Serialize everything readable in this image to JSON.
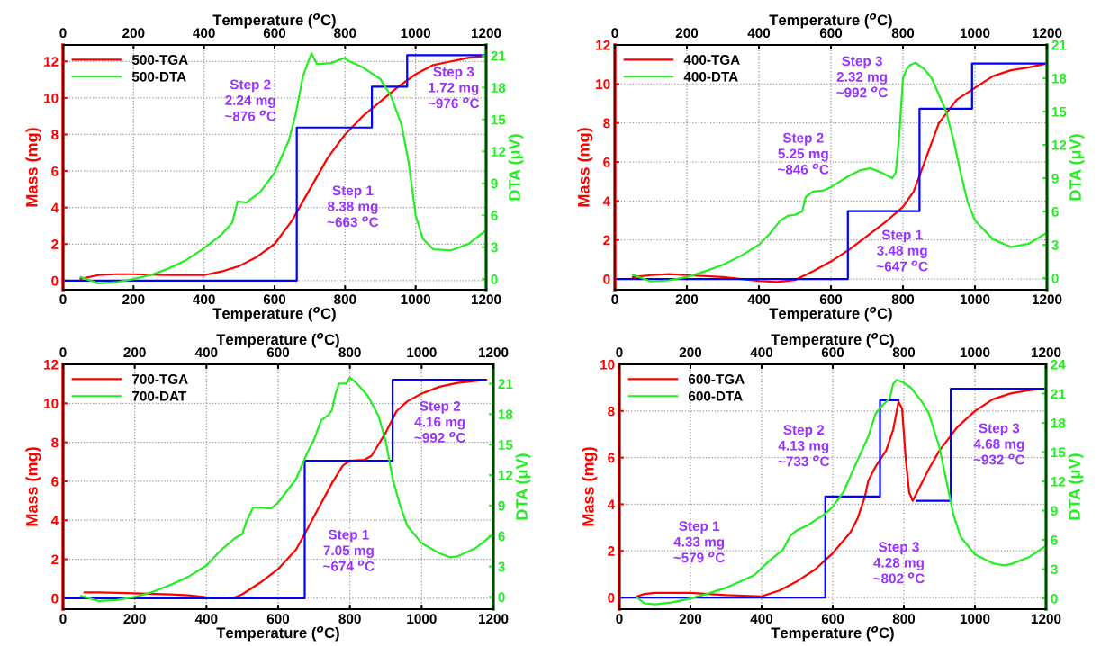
{
  "chart_data": [
    {
      "type": "line",
      "xlabel": "Temperature ($^{o}$C)",
      "x2label": "Temperature ($^{o}$C)",
      "ylabel": "Mass (mg)",
      "y2label": "DTA (μV)",
      "xlim": [
        0,
        1200
      ],
      "xticks": [
        0,
        200,
        400,
        600,
        800,
        1000,
        1200
      ],
      "x2lim": [
        0,
        1200
      ],
      "x2ticks": [
        0,
        200,
        400,
        600,
        800,
        1000,
        1200
      ],
      "ylim": [
        -0.5,
        12.9
      ],
      "yticks": [
        0,
        2,
        4,
        6,
        8,
        10,
        12
      ],
      "y2lim": [
        -1,
        22
      ],
      "y2ticks": [
        0,
        3,
        6,
        9,
        12,
        15,
        18,
        21
      ],
      "grid": true,
      "legend": "top left",
      "series": [
        {
          "name": "500-TGA",
          "color": "#ff0000",
          "x": [
            50,
            100,
            150,
            200,
            300,
            400,
            450,
            500,
            550,
            600,
            650,
            700,
            750,
            800,
            850,
            900,
            950,
            1000,
            1050,
            1100,
            1150,
            1200
          ],
          "values": [
            0.1,
            0.3,
            0.35,
            0.35,
            0.3,
            0.3,
            0.5,
            0.8,
            1.3,
            2.0,
            3.3,
            5.0,
            6.7,
            8.0,
            9.0,
            9.8,
            10.6,
            11.3,
            11.8,
            12.0,
            12.2,
            12.3
          ]
        },
        {
          "name": "500-DTA",
          "color": "#22ee22",
          "axis": "y2",
          "x": [
            50,
            100,
            150,
            200,
            250,
            300,
            350,
            400,
            450,
            480,
            495,
            520,
            560,
            600,
            640,
            660,
            680,
            700,
            705,
            720,
            760,
            800,
            810,
            850,
            900,
            930,
            960,
            980,
            1000,
            1020,
            1050,
            1100,
            1150,
            1200
          ],
          "values": [
            0.2,
            -0.4,
            -0.3,
            0,
            0.4,
            1.0,
            1.8,
            2.9,
            4.2,
            5.3,
            7.3,
            7.2,
            8.2,
            10,
            13,
            15.5,
            19,
            20.8,
            21.2,
            20.2,
            20.3,
            20.8,
            20.5,
            19.9,
            18.8,
            17.2,
            14.5,
            11,
            6,
            3.8,
            2.8,
            2.7,
            3.3,
            4.6
          ]
        },
        {
          "color": "#0000ff",
          "x": [
            0,
            663,
            663,
            876,
            876,
            976,
            976,
            1200
          ],
          "values": [
            0,
            0,
            8.38,
            8.38,
            10.62,
            10.62,
            12.34,
            12.34
          ]
        }
      ],
      "annotations": [
        "Step 2\n2.24 mg\n~876 $^{o}$C",
        "Step 3\n1.72 mg\n~976 $^{o}$C",
        "Step 1\n8.38 mg\n~663 $^{o}$C"
      ]
    },
    {
      "type": "line",
      "xlabel": "Temperature ($^{o}$C)",
      "x2label": "Temperature ($^{o}$C)",
      "ylabel": "Mass (mg)",
      "y2label": "DTA (μV)",
      "xlim": [
        0,
        1200
      ],
      "xticks": [
        0,
        200,
        400,
        600,
        800,
        1000,
        1200
      ],
      "x2lim": [
        0,
        1200
      ],
      "x2ticks": [
        0,
        200,
        400,
        600,
        800,
        1000,
        1200
      ],
      "ylim": [
        -0.55,
        12
      ],
      "yticks": [
        0,
        2,
        4,
        6,
        8,
        10,
        12
      ],
      "y2lim": [
        -1.05,
        21
      ],
      "y2ticks": [
        0,
        3,
        6,
        9,
        12,
        15,
        18,
        21
      ],
      "grid": true,
      "legend": "top left",
      "series": [
        {
          "name": "400-TGA",
          "color": "#ff0000",
          "x": [
            50,
            100,
            150,
            200,
            300,
            400,
            450,
            500,
            550,
            600,
            650,
            700,
            750,
            800,
            830,
            850,
            880,
            900,
            950,
            1000,
            1050,
            1100,
            1150,
            1200
          ],
          "values": [
            0.1,
            0.2,
            0.25,
            0.2,
            0.1,
            -0.1,
            -0.15,
            -0.05,
            0.4,
            0.9,
            1.5,
            2.2,
            2.9,
            3.7,
            4.5,
            5.5,
            7.0,
            8.0,
            9.2,
            9.8,
            10.4,
            10.7,
            10.85,
            11.05
          ]
        },
        {
          "name": "400-DTA",
          "color": "#22ee22",
          "axis": "y2",
          "x": [
            50,
            100,
            150,
            200,
            250,
            300,
            350,
            400,
            430,
            460,
            480,
            500,
            520,
            530,
            550,
            580,
            600,
            650,
            680,
            710,
            740,
            770,
            780,
            790,
            800,
            810,
            820,
            835,
            860,
            880,
            900,
            920,
            940,
            960,
            980,
            1000,
            1050,
            1100,
            1150,
            1200
          ],
          "values": [
            0.3,
            -0.3,
            -0.2,
            0.1,
            0.6,
            1.2,
            2.0,
            3.0,
            4.0,
            5.2,
            5.6,
            5.7,
            6.0,
            7.3,
            7.8,
            7.9,
            8.2,
            9.2,
            9.7,
            9.9,
            9.5,
            9.0,
            9.5,
            13,
            18.0,
            18.8,
            19.2,
            19.4,
            18.8,
            18.0,
            16.5,
            15.0,
            12.5,
            9.5,
            6.8,
            5.2,
            3.5,
            2.8,
            3.1,
            4.1
          ]
        },
        {
          "color": "#0000ff",
          "x": [
            0,
            647,
            647,
            846,
            846,
            992,
            992,
            1200
          ],
          "values": [
            0,
            0,
            3.48,
            3.48,
            8.73,
            8.73,
            11.05,
            11.05
          ]
        }
      ],
      "annotations": [
        "Step 3\n2.32 mg\n~992 $^{o}$C",
        "Step 2\n5.25 mg\n~846 $^{o}$C",
        "Step 1\n3.48 mg\n~647 $^{o}$C"
      ]
    },
    {
      "type": "line",
      "xlabel": "Temperature ($^{o}$C)",
      "x2label": "Temperature ($^{o}$C)",
      "ylabel": "Mass (mg)",
      "y2label": "DTA (μV)",
      "xlim": [
        0,
        1200
      ],
      "xticks": [
        0,
        200,
        400,
        600,
        800,
        1000,
        1200
      ],
      "x2lim": [
        0,
        1200
      ],
      "x2ticks": [
        0,
        200,
        400,
        600,
        800,
        1000,
        1200
      ],
      "ylim": [
        -0.56,
        12
      ],
      "yticks": [
        0,
        2,
        4,
        6,
        8,
        10,
        12
      ],
      "y2lim": [
        -1.2,
        22.9
      ],
      "y2ticks": [
        0,
        3,
        6,
        9,
        12,
        15,
        18,
        21
      ],
      "grid": true,
      "legend": "top left",
      "series": [
        {
          "name": "700-TGA",
          "color": "#ff0000",
          "x": [
            60,
            100,
            200,
            300,
            350,
            400,
            450,
            480,
            500,
            550,
            600,
            650,
            680,
            700,
            750,
            780,
            800,
            840,
            860,
            900,
            930,
            960,
            1000,
            1050,
            1100,
            1150,
            1180
          ],
          "values": [
            0.3,
            0.3,
            0.25,
            0.2,
            0.15,
            0.05,
            0,
            0.05,
            0.2,
            0.8,
            1.5,
            2.5,
            3.5,
            4.2,
            5.9,
            6.8,
            7.05,
            7.1,
            7.3,
            8.5,
            9.6,
            10.1,
            10.5,
            10.85,
            11.05,
            11.15,
            11.2
          ]
        },
        {
          "name": "700-DAT",
          "color": "#22ee22",
          "axis": "y2",
          "x": [
            50,
            100,
            150,
            200,
            250,
            300,
            350,
            400,
            440,
            480,
            500,
            510,
            530,
            550,
            580,
            600,
            650,
            680,
            700,
            720,
            740,
            750,
            760,
            770,
            790,
            800,
            820,
            850,
            880,
            900,
            920,
            940,
            960,
            1000,
            1050,
            1080,
            1100,
            1150,
            1200
          ],
          "values": [
            0.1,
            -0.4,
            -0.3,
            0,
            0.5,
            1.2,
            2.0,
            3.1,
            4.6,
            5.8,
            6.2,
            7.3,
            8.8,
            8.8,
            8.7,
            9.3,
            11.6,
            14.1,
            15.5,
            17.4,
            17.9,
            18.4,
            20.0,
            21.0,
            21.0,
            21.6,
            21.0,
            19.8,
            17.8,
            15.3,
            11.5,
            9.0,
            7.0,
            5.3,
            4.3,
            3.9,
            4.0,
            4.8,
            6.2
          ]
        },
        {
          "color": "#0000ff",
          "x": [
            0,
            674,
            674,
            919,
            919,
            1177
          ],
          "values": [
            0,
            0,
            7.05,
            7.05,
            11.21,
            11.21
          ]
        }
      ],
      "annotations": [
        "Step 2\n4.16 mg\n~992 $^{o}$C",
        "Step 1\n7.05 mg\n~674 $^{o}$C"
      ]
    },
    {
      "type": "line",
      "xlabel": "Temperature ($^{o}$C)",
      "x2label": "Temperature ($^{o}$C)",
      "ylabel": "Mass (mg)",
      "y2label": "DTA (μV)",
      "xlim": [
        0,
        1200
      ],
      "xticks": [
        0,
        200,
        400,
        600,
        800,
        1000,
        1200
      ],
      "x2lim": [
        0,
        1200
      ],
      "x2ticks": [
        0,
        200,
        400,
        600,
        800,
        1000,
        1200
      ],
      "ylim": [
        -0.5,
        10
      ],
      "yticks": [
        0,
        2,
        4,
        6,
        8,
        10
      ],
      "y2lim": [
        -1.1,
        24
      ],
      "y2ticks": [
        0,
        3,
        6,
        9,
        12,
        15,
        18,
        21,
        24
      ],
      "grid": true,
      "legend": "top left",
      "series": [
        {
          "name": "600-TGA",
          "color": "#ff0000",
          "x": [
            50,
            70,
            100,
            200,
            300,
            400,
            450,
            500,
            550,
            600,
            650,
            670,
            690,
            700,
            720,
            750,
            770,
            785,
            795,
            805,
            815,
            825,
            840,
            870,
            900,
            950,
            1000,
            1050,
            1100,
            1150,
            1190
          ],
          "values": [
            0.05,
            0.15,
            0.2,
            0.2,
            0.1,
            0.05,
            0.3,
            0.7,
            1.2,
            1.9,
            2.8,
            3.4,
            4.3,
            5.0,
            5.6,
            6.3,
            7.2,
            8.4,
            8.1,
            6.0,
            4.5,
            4.15,
            4.6,
            5.5,
            6.3,
            7.3,
            8.0,
            8.5,
            8.75,
            8.88,
            8.95
          ]
        },
        {
          "name": "600-DTA",
          "color": "#22ee22",
          "axis": "y2",
          "x": [
            50,
            70,
            100,
            150,
            200,
            250,
            300,
            350,
            380,
            420,
            460,
            480,
            500,
            530,
            550,
            580,
            600,
            630,
            660,
            700,
            720,
            740,
            760,
            770,
            780,
            800,
            820,
            850,
            870,
            900,
            920,
            940,
            960,
            1000,
            1050,
            1080,
            1100,
            1150,
            1200
          ],
          "values": [
            0.1,
            -0.5,
            -0.6,
            -0.4,
            0,
            0.5,
            1.1,
            1.9,
            2.4,
            3.8,
            5.0,
            6.4,
            7.0,
            7.5,
            8.0,
            8.7,
            9.4,
            10.9,
            13.4,
            16.6,
            18.9,
            19.8,
            20.5,
            22.0,
            22.4,
            22.1,
            21.6,
            20.2,
            19.0,
            15.5,
            12.0,
            8.5,
            6.3,
            4.5,
            3.6,
            3.4,
            3.5,
            4.2,
            5.4
          ]
        },
        {
          "color": "#0000ff",
          "x": [
            0,
            579,
            579,
            733,
            733,
            785,
            810,
            836,
            932,
            932,
            1200
          ],
          "values": [
            0,
            0,
            4.33,
            4.33,
            8.46,
            8.46,
            null,
            4.15,
            4.15,
            8.95,
            8.95
          ]
        }
      ],
      "annotations": [
        "Step 1\n4.33 mg\n~579 $^{o}$C",
        "Step 2\n4.13 mg\n~733 $^{o}$C",
        "Step 3\n4.68 mg\n~932 $^{o}$C",
        "Step 3\n4.28 mg\n~802 $^{o}$C"
      ]
    }
  ]
}
